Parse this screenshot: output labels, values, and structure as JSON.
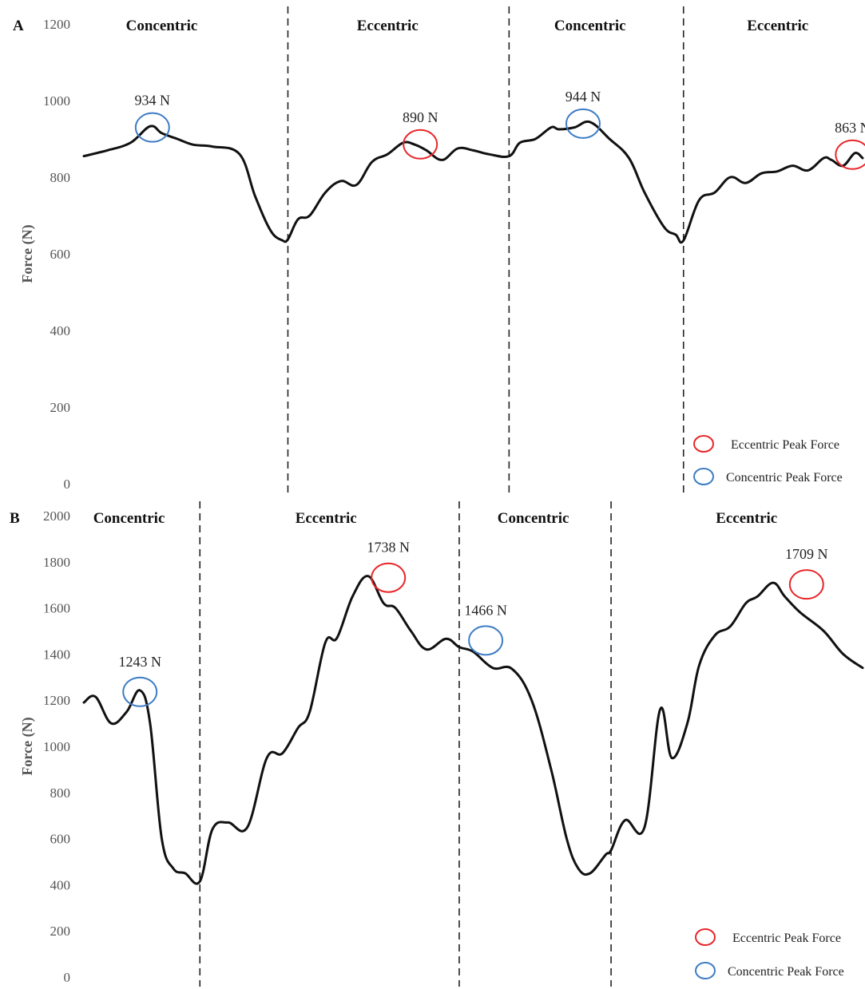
{
  "chart_data": [
    {
      "type": "line",
      "panel_label": "A",
      "ylabel": "Force (N)",
      "ylim": [
        0,
        1200
      ],
      "yticks": [
        0,
        200,
        400,
        600,
        800,
        1000,
        1200
      ],
      "grid": false,
      "legend_placement": "bottom-right",
      "xlim": [
        0,
        1
      ],
      "phase_boundaries": [
        0.262,
        0.546,
        0.77
      ],
      "phases": [
        {
          "label": "Concentric",
          "x": 0.1
        },
        {
          "label": "Eccentric",
          "x": 0.39
        },
        {
          "label": "Concentric",
          "x": 0.65
        },
        {
          "label": "Eccentric",
          "x": 0.891
        }
      ],
      "series": {
        "x": [
          0,
          0.03,
          0.06,
          0.085,
          0.1,
          0.12,
          0.14,
          0.165,
          0.2,
          0.22,
          0.24,
          0.255,
          0.262,
          0.275,
          0.29,
          0.31,
          0.33,
          0.35,
          0.37,
          0.39,
          0.41,
          0.425,
          0.44,
          0.46,
          0.48,
          0.5,
          0.52,
          0.546,
          0.56,
          0.58,
          0.6,
          0.61,
          0.63,
          0.65,
          0.675,
          0.7,
          0.72,
          0.745,
          0.76,
          0.77,
          0.79,
          0.81,
          0.83,
          0.85,
          0.87,
          0.89,
          0.91,
          0.93,
          0.95,
          0.96,
          0.975,
          0.99,
          1.0
        ],
        "y": [
          855,
          870,
          890,
          933,
          915,
          900,
          885,
          880,
          860,
          750,
          660,
          635,
          638,
          690,
          700,
          760,
          790,
          780,
          840,
          860,
          890,
          885,
          870,
          845,
          875,
          870,
          860,
          855,
          890,
          900,
          930,
          925,
          930,
          944,
          900,
          850,
          760,
          670,
          650,
          635,
          740,
          760,
          800,
          785,
          810,
          815,
          830,
          818,
          850,
          845,
          830,
          863,
          850
        ]
      },
      "peaks": [
        {
          "label": "934 N",
          "type": "concentric",
          "x": 0.088,
          "value": 934
        },
        {
          "label": "890 N",
          "type": "eccentric",
          "x": 0.432,
          "value": 890
        },
        {
          "label": "944 N",
          "type": "concentric",
          "x": 0.641,
          "value": 944
        },
        {
          "label": "863 N",
          "type": "eccentric",
          "x": 0.987,
          "value": 863
        }
      ],
      "legend": [
        {
          "label": "Eccentric Peak Force",
          "color": "#e8262a"
        },
        {
          "label": "Concentric Peak Force",
          "color": "#3d7cc4"
        }
      ]
    },
    {
      "type": "line",
      "panel_label": "B",
      "ylabel": "Force (N)",
      "ylim": [
        0,
        2000
      ],
      "yticks": [
        0,
        200,
        400,
        600,
        800,
        1000,
        1200,
        1400,
        1600,
        1800,
        2000
      ],
      "grid": false,
      "legend_placement": "bottom-right",
      "xlim": [
        0,
        1
      ],
      "phase_boundaries": [
        0.149,
        0.482,
        0.677
      ],
      "phases": [
        {
          "label": "Concentric",
          "x": 0.058
        },
        {
          "label": "Eccentric",
          "x": 0.311
        },
        {
          "label": "Concentric",
          "x": 0.577
        },
        {
          "label": "Eccentric",
          "x": 0.851
        }
      ],
      "series": {
        "x": [
          0,
          0.015,
          0.035,
          0.055,
          0.072,
          0.085,
          0.1,
          0.115,
          0.13,
          0.149,
          0.165,
          0.185,
          0.21,
          0.235,
          0.255,
          0.275,
          0.29,
          0.31,
          0.325,
          0.345,
          0.365,
          0.385,
          0.4,
          0.42,
          0.44,
          0.465,
          0.482,
          0.5,
          0.525,
          0.55,
          0.575,
          0.6,
          0.62,
          0.635,
          0.65,
          0.67,
          0.677,
          0.695,
          0.72,
          0.74,
          0.755,
          0.775,
          0.79,
          0.81,
          0.83,
          0.85,
          0.865,
          0.885,
          0.9,
          0.92,
          0.95,
          0.975,
          1.0
        ],
        "y": [
          1190,
          1215,
          1100,
          1150,
          1243,
          1100,
          600,
          470,
          450,
          415,
          640,
          670,
          650,
          950,
          970,
          1080,
          1150,
          1450,
          1470,
          1650,
          1738,
          1620,
          1600,
          1500,
          1420,
          1466,
          1430,
          1410,
          1340,
          1335,
          1200,
          900,
          600,
          470,
          450,
          530,
          550,
          680,
          650,
          1160,
          950,
          1100,
          1350,
          1480,
          1520,
          1620,
          1650,
          1709,
          1650,
          1580,
          1500,
          1400,
          1340
        ]
      },
      "peaks": [
        {
          "label": "1243 N",
          "type": "concentric",
          "x": 0.072,
          "value": 1243
        },
        {
          "label": "1738 N",
          "type": "eccentric",
          "x": 0.391,
          "value": 1738
        },
        {
          "label": "1466 N",
          "type": "concentric",
          "x": 0.516,
          "value": 1466
        },
        {
          "label": "1709 N",
          "type": "eccentric",
          "x": 0.928,
          "value": 1709
        }
      ],
      "legend": [
        {
          "label": "Eccentric Peak Force",
          "color": "#e8262a"
        },
        {
          "label": "Concentric Peak Force",
          "color": "#3d7cc4"
        }
      ]
    }
  ]
}
